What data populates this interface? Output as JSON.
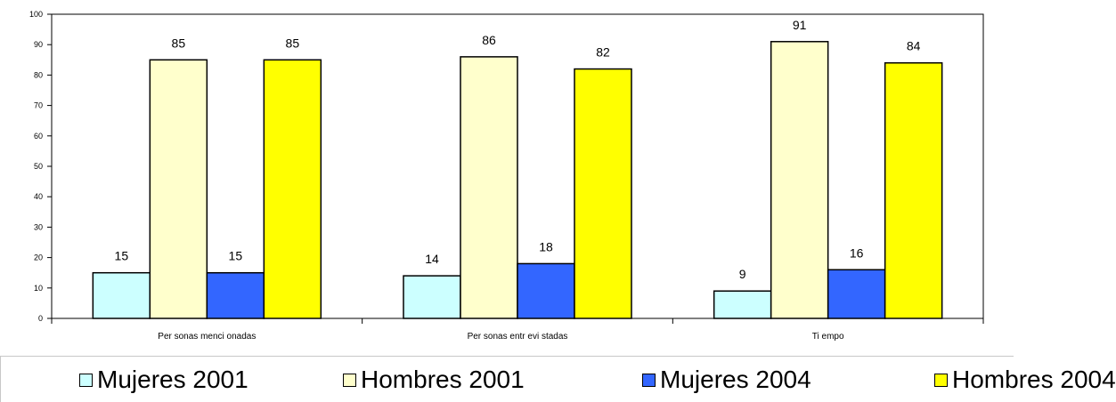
{
  "chart_data": {
    "type": "bar",
    "categories": [
      "Per sonas menci onadas",
      "Per sonas entr evi stadas",
      "Ti empo"
    ],
    "series": [
      {
        "name": "Mujeres 2001",
        "values": [
          15,
          14,
          9
        ],
        "color": "#ccffff"
      },
      {
        "name": "Hombres 2001",
        "values": [
          85,
          86,
          91
        ],
        "color": "#ffffcc"
      },
      {
        "name": "Mujeres 2004",
        "values": [
          15,
          18,
          16
        ],
        "color": "#3366ff"
      },
      {
        "name": "Hombres 2004",
        "values": [
          85,
          82,
          84
        ],
        "color": "#ffff00"
      }
    ],
    "ylim": [
      0,
      100
    ],
    "yticks": [
      "0",
      "10",
      "20",
      "30",
      "40",
      "50",
      "60",
      "70",
      "80",
      "90",
      "100"
    ],
    "grid": false,
    "legend_position": "bottom"
  }
}
